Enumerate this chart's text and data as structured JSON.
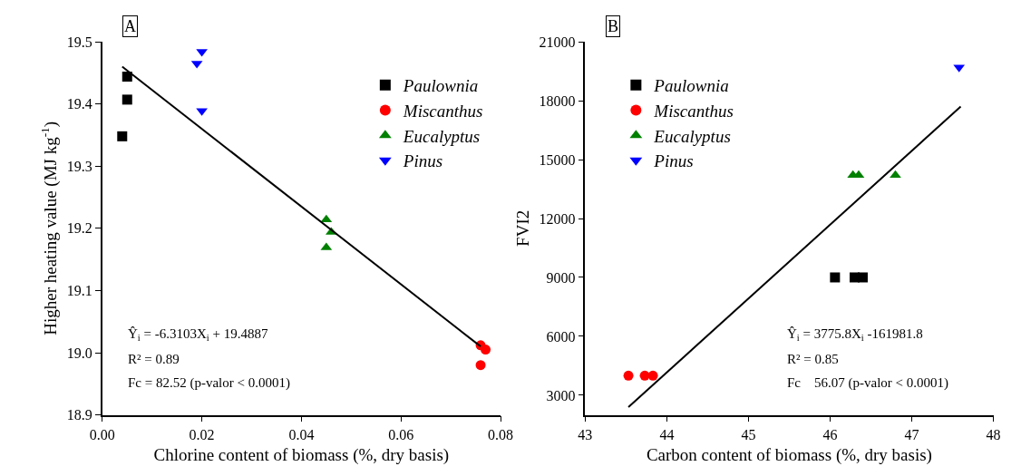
{
  "chart_data": [
    {
      "type": "scatter",
      "xlabel": "Chlorine content of biomass (%, dry basis)",
      "ylabel": "Higher heating value (MJ kg$^{-1}$)",
      "xlim": [
        0,
        0.08
      ],
      "xticks": [
        {
          "value": 0,
          "label": "0.00"
        },
        {
          "value": 0.02,
          "label": "0.02"
        },
        {
          "value": 0.04,
          "label": "0.04"
        },
        {
          "value": 0.06,
          "label": "0.06"
        },
        {
          "value": 0.08,
          "label": "0.08"
        }
      ],
      "ylim": [
        18.9,
        19.5
      ],
      "yticks": [
        18.9,
        {
          "value": 19.0,
          "label": "19.0"
        },
        19.1,
        19.2,
        19.3,
        19.4,
        19.5
      ],
      "legend": "top right",
      "annotations": [
        "A",
        "Ŷ$_{i}$ = -6.3103X$_{i}$ + 19.4887",
        "R² = 0.89",
        "Fc = 82.52 (p-valor < 0.0001)"
      ],
      "series": [
        {
          "name": "Paulownia",
          "color": "#000000",
          "marker": "square",
          "x": [
            0.004,
            0.005,
            0.005
          ],
          "values": [
            19.348,
            19.407,
            19.444
          ]
        },
        {
          "name": "Miscanthus",
          "color": "#ff0000",
          "marker": "circle",
          "x": [
            0.076,
            0.077,
            0.076
          ],
          "values": [
            19.012,
            19.005,
            18.98
          ]
        },
        {
          "name": "Eucalyptus",
          "color": "#008000",
          "marker": "triangle",
          "x": [
            0.045,
            0.046,
            0.045
          ],
          "values": [
            19.214,
            19.194,
            19.169
          ]
        },
        {
          "name": "Pinus",
          "color": "#0000ff",
          "marker": "triangle-down",
          "x": [
            0.019,
            0.02,
            0.02
          ],
          "values": [
            19.465,
            19.484,
            19.389
          ]
        },
        {
          "type": "line",
          "color": "#000000",
          "marker": "none",
          "x": [
            0.004,
            0.076
          ],
          "values": [
            19.46,
            19.01
          ]
        }
      ]
    },
    {
      "type": "scatter",
      "xlabel": "Carbon content of biomass (%, dry basis)",
      "ylabel": "FVI2",
      "xlim": [
        43,
        48
      ],
      "xticks": [
        43,
        44,
        45,
        46,
        47,
        48
      ],
      "ylim": [
        2000,
        21000
      ],
      "yticks": [
        3000,
        6000,
        9000,
        12000,
        15000,
        18000,
        21000
      ],
      "legend": "top left",
      "annotations": [
        "B",
        "Ŷ$_{i}$ = 3775.8X$_{i}$ -161981.8",
        "R² = 0.85",
        "Fc    56.07 (p-valor < 0.0001)"
      ],
      "series": [
        {
          "name": "Paulownia",
          "color": "#000000",
          "marker": "square",
          "x": [
            46.06,
            46.3,
            46.4
          ],
          "values": [
            9000,
            9000,
            9000
          ]
        },
        {
          "name": "Miscanthus",
          "color": "#ff0000",
          "marker": "circle",
          "x": [
            43.53,
            43.73,
            43.83
          ],
          "values": [
            4000,
            4000,
            4000
          ]
        },
        {
          "name": "Eucalyptus",
          "color": "#008000",
          "marker": "triangle",
          "x": [
            46.28,
            46.35,
            46.8
          ],
          "values": [
            14200,
            14200,
            14200
          ]
        },
        {
          "name": "Pinus",
          "color": "#0000ff",
          "marker": "triangle-down",
          "x": [
            47.58
          ],
          "values": [
            19700
          ]
        },
        {
          "type": "line",
          "color": "#000000",
          "marker": "none",
          "x": [
            43.53,
            47.6
          ],
          "values": [
            2400,
            17700
          ]
        }
      ]
    }
  ]
}
